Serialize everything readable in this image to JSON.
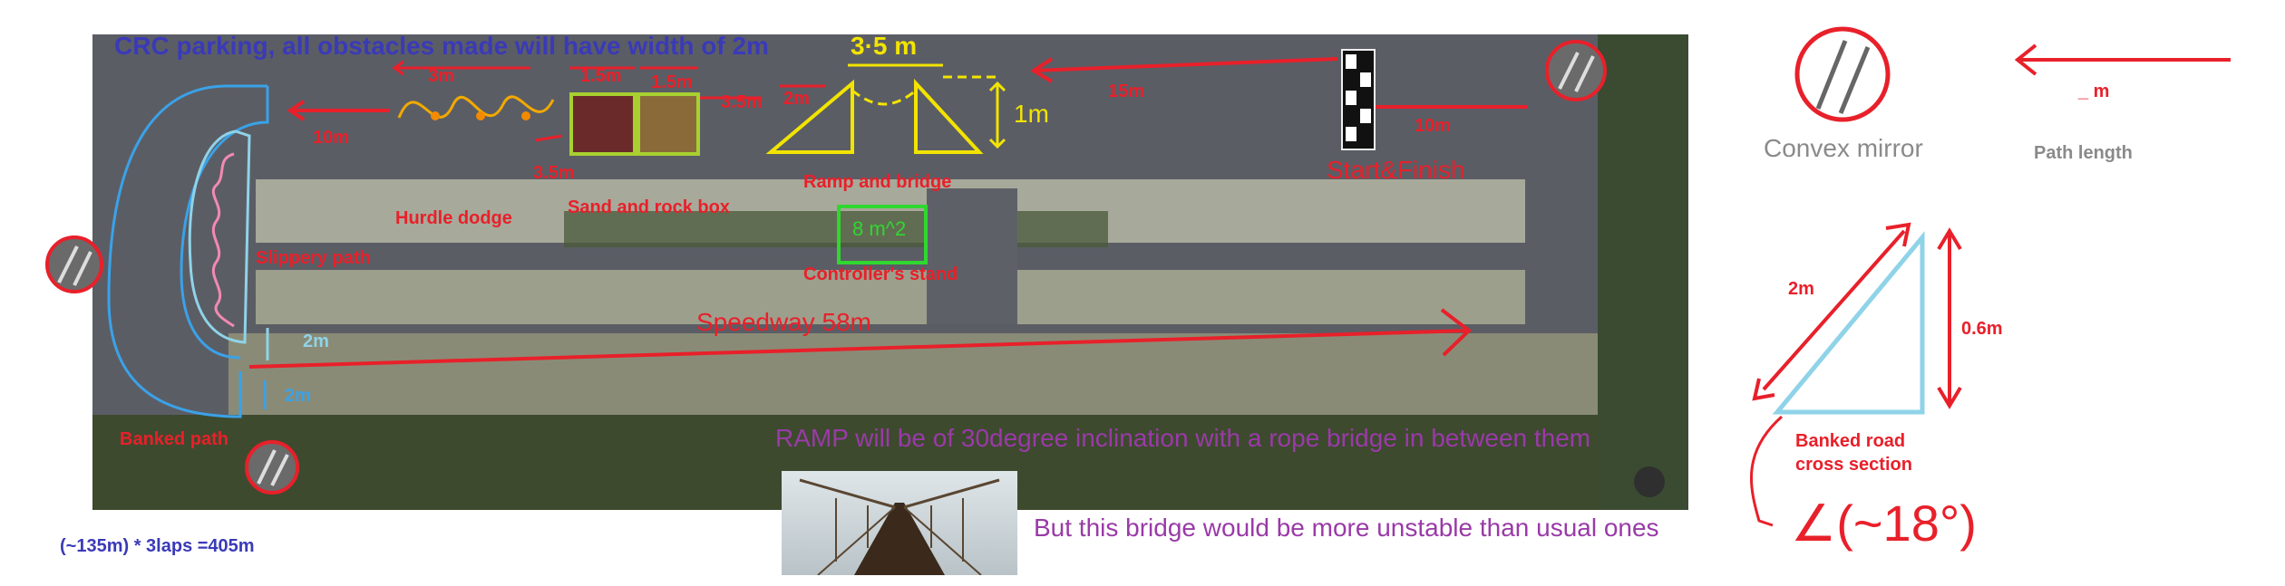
{
  "title": "CRC parking,  all obstacles made will have width of 2m",
  "labels": {
    "m3": "3m",
    "m1_5a": "1.5m",
    "m1_5b": "1.5m",
    "m2_top": "3·5 m",
    "m3_5a": "3.5m",
    "m2a": "2m",
    "m1": "1m",
    "m15": "15m",
    "m10_right": "10m",
    "m10_left": "10m",
    "m3_5b": "3.5m",
    "hurdle": "Hurdle dodge",
    "sand": "Sand and rock box",
    "ramp": "Ramp and bridge",
    "start": "Start&Finish",
    "area": "8 m^2",
    "controller": "Controller's stand",
    "slippery": "Slippery path",
    "speedway": "Speedway 58m",
    "m2_upper": "2m",
    "m2_lower": "2m",
    "banked_path": "Banked path",
    "ramp_note": "RAMP will be of 30degree inclination with a rope bridge in between them",
    "bridge_note": "But this bridge would be more unstable than usual ones",
    "laps": "(~135m) * 3laps  =405m"
  },
  "legend": {
    "mirror_label": "Convex mirror",
    "path_value": "_ m",
    "path_label": "Path length"
  },
  "cross_section": {
    "hyp": "2m",
    "height": "0.6m",
    "label": "Banked road cross section",
    "angle": "∠(~18°)"
  },
  "colors": {
    "red": "#e8202a",
    "blue_title": "#3a3ab8",
    "purple": "#9a3aa8",
    "yellow": "#f2e400",
    "green": "#2fd82f",
    "cyan": "#8fd3e8",
    "road": "#5e6068"
  }
}
